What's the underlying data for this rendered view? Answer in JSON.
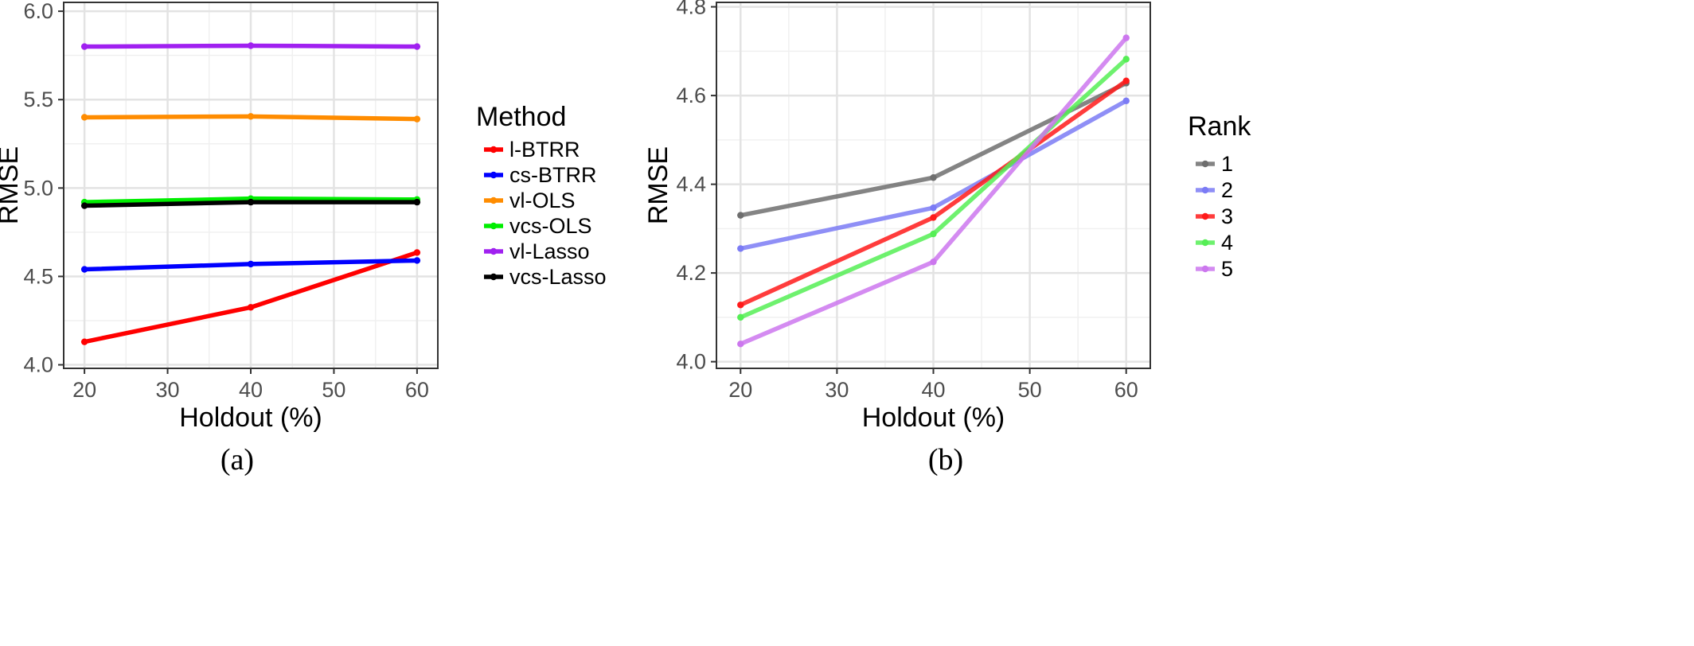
{
  "chart_data": [
    {
      "type": "line",
      "caption": "(a)",
      "xlabel": "Holdout (%)",
      "ylabel": "RMSE",
      "x": [
        20,
        40,
        60
      ],
      "xlim": [
        17.5,
        62.5
      ],
      "ylim": [
        3.98,
        6.05
      ],
      "xticks": [
        20,
        30,
        40,
        50,
        60
      ],
      "yticks": [
        4.0,
        4.5,
        5.0,
        5.5,
        6.0
      ],
      "ytick_labels": [
        "4.0",
        "4.5",
        "5.0",
        "5.5",
        "6.0"
      ],
      "grid": true,
      "legend_title": "Method",
      "legend_position": "right",
      "series": [
        {
          "name": "l-BTRR",
          "color": "#ff0000",
          "values": [
            4.13,
            4.325,
            4.635
          ]
        },
        {
          "name": "cs-BTRR",
          "color": "#0000ff",
          "values": [
            4.54,
            4.57,
            4.59
          ]
        },
        {
          "name": "vl-OLS",
          "color": "#ff8c00",
          "values": [
            5.4,
            5.405,
            5.39
          ]
        },
        {
          "name": "vcs-OLS",
          "color": "#00ee00",
          "values": [
            4.92,
            4.94,
            4.935
          ]
        },
        {
          "name": "vl-Lasso",
          "color": "#a020f0",
          "values": [
            5.8,
            5.805,
            5.8
          ]
        },
        {
          "name": "vcs-Lasso",
          "color": "#000000",
          "values": [
            4.9,
            4.92,
            4.92
          ]
        }
      ]
    },
    {
      "type": "line",
      "caption": "(b)",
      "xlabel": "Holdout (%)",
      "ylabel": "RMSE",
      "x": [
        20,
        40,
        60
      ],
      "xlim": [
        17.5,
        62.5
      ],
      "ylim": [
        3.985,
        4.81
      ],
      "xticks": [
        20,
        30,
        40,
        50,
        60
      ],
      "yticks": [
        4.0,
        4.2,
        4.4,
        4.6,
        4.8
      ],
      "ytick_labels": [
        "4.0",
        "4.2",
        "4.4",
        "4.6",
        "4.8"
      ],
      "grid": true,
      "legend_title": "Rank",
      "legend_position": "right",
      "series": [
        {
          "name": "1",
          "color": "#6e6e6e",
          "values": [
            4.33,
            4.415,
            4.628
          ]
        },
        {
          "name": "2",
          "color": "#7b7bf5",
          "values": [
            4.255,
            4.347,
            4.588
          ]
        },
        {
          "name": "3",
          "color": "#ff1a1a",
          "values": [
            4.128,
            4.325,
            4.633
          ]
        },
        {
          "name": "4",
          "color": "#55ee55",
          "values": [
            4.1,
            4.288,
            4.682
          ]
        },
        {
          "name": "5",
          "color": "#cc77ee",
          "values": [
            4.04,
            4.225,
            4.73
          ]
        }
      ]
    }
  ]
}
